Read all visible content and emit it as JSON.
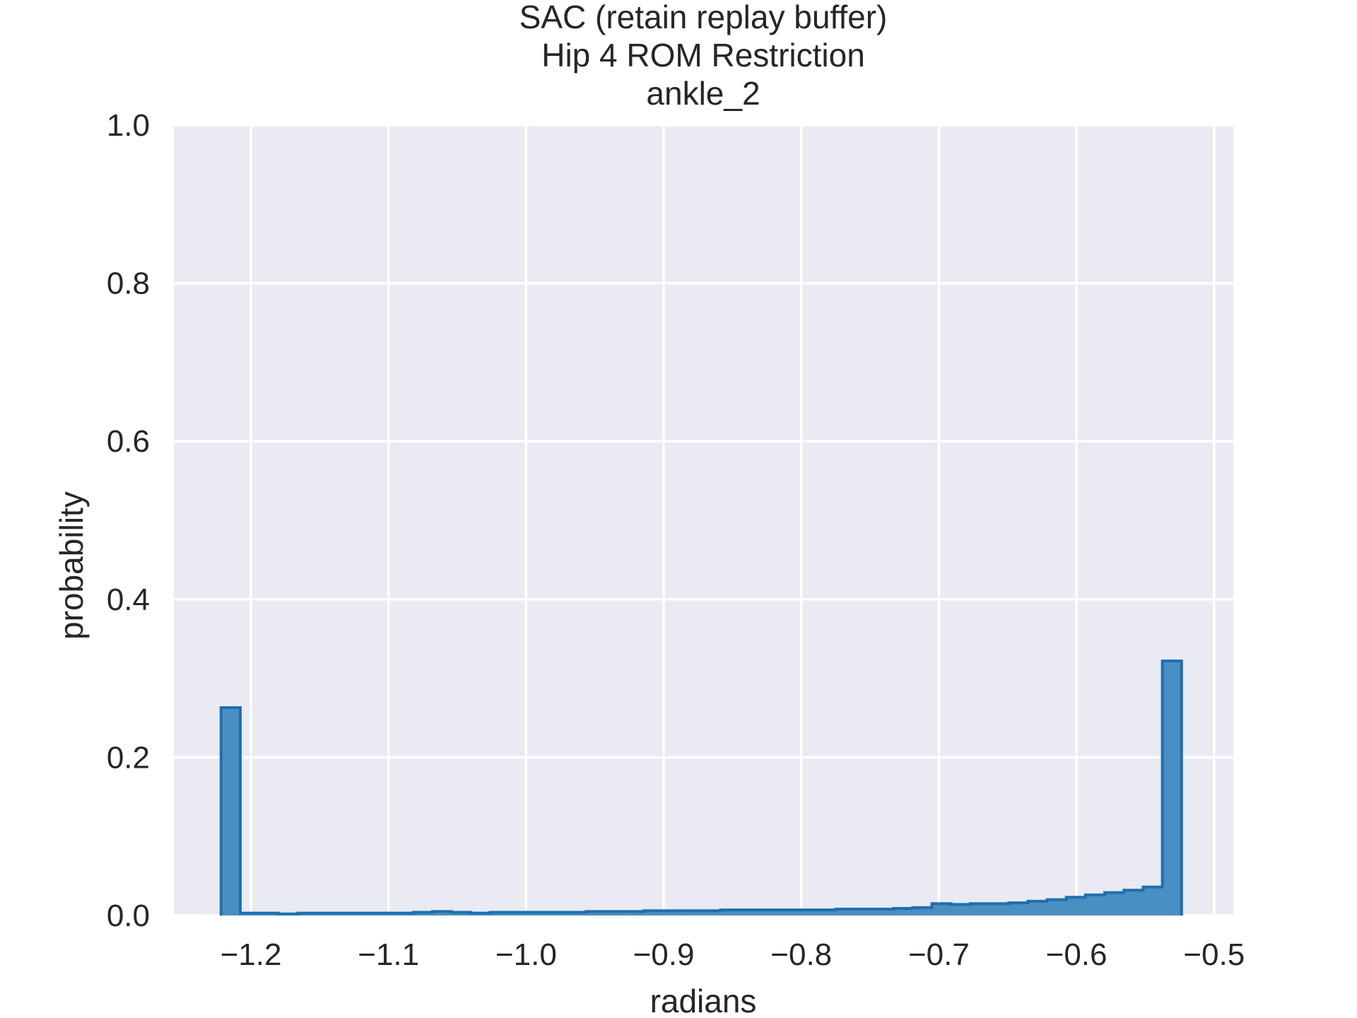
{
  "chart_data": {
    "type": "bar",
    "title_lines": [
      "SAC (retain replay buffer)",
      "Hip 4 ROM Restriction",
      "ankle_2"
    ],
    "xlabel": "radians",
    "ylabel": "probability",
    "xlim": [
      -1.256,
      -0.486
    ],
    "ylim": [
      0.0,
      1.0
    ],
    "x_ticks": [
      -1.2,
      -1.1,
      -1.0,
      -0.9,
      -0.8,
      -0.7,
      -0.6,
      -0.5
    ],
    "x_tick_labels": [
      "−1.2",
      "−1.1",
      "−1.0",
      "−0.9",
      "−0.8",
      "−0.7",
      "−0.6",
      "−0.5"
    ],
    "y_ticks": [
      0.0,
      0.2,
      0.4,
      0.6,
      0.8,
      1.0
    ],
    "y_tick_labels": [
      "0.0",
      "0.2",
      "0.4",
      "0.6",
      "0.8",
      "1.0"
    ],
    "grid": true,
    "histtype": "stepfilled",
    "bin_start": -1.2217,
    "bin_end": -0.5236,
    "values": [
      0.263,
      0.003,
      0.003,
      0.002,
      0.003,
      0.003,
      0.003,
      0.003,
      0.003,
      0.003,
      0.004,
      0.005,
      0.004,
      0.003,
      0.004,
      0.004,
      0.004,
      0.004,
      0.004,
      0.005,
      0.005,
      0.005,
      0.006,
      0.006,
      0.006,
      0.006,
      0.007,
      0.007,
      0.007,
      0.007,
      0.007,
      0.007,
      0.008,
      0.008,
      0.008,
      0.009,
      0.01,
      0.015,
      0.014,
      0.015,
      0.015,
      0.016,
      0.018,
      0.02,
      0.023,
      0.026,
      0.029,
      0.032,
      0.036,
      0.322
    ],
    "colors": {
      "fill": "#4a8fc2",
      "edge": "#1f6fae",
      "plot_background": "#e9eaf2",
      "grid": "#ffffff",
      "text": "#262626"
    }
  }
}
